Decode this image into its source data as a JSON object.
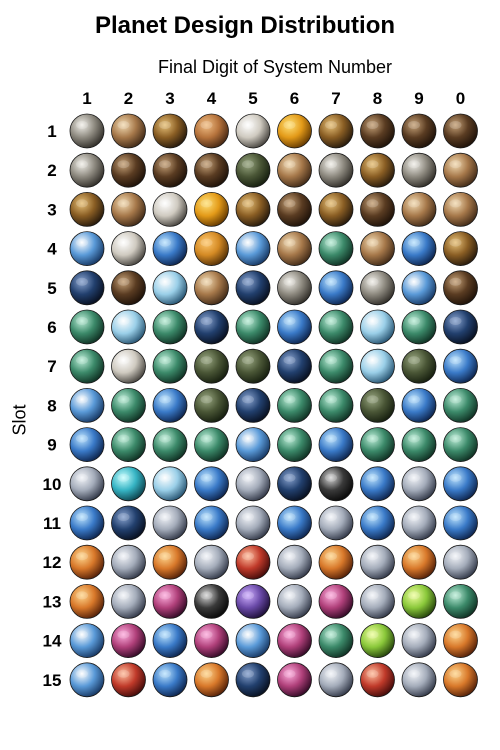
{
  "chart_data": {
    "type": "table",
    "title": "Planet Design Distribution",
    "xlabel": "Final Digit of System Number",
    "ylabel": "Slot",
    "columns": [
      "1",
      "2",
      "3",
      "4",
      "5",
      "6",
      "7",
      "8",
      "9",
      "0"
    ],
    "rows": [
      "1",
      "2",
      "3",
      "4",
      "5",
      "6",
      "7",
      "8",
      "9",
      "10",
      "11",
      "12",
      "13",
      "14",
      "15"
    ],
    "cells": [
      [
        "rock-grey",
        "rock-tan",
        "desert-brown",
        "rock-orange",
        "rock-white",
        "desert-gold",
        "desert-brown",
        "rock-dark-brown",
        "rock-dark-brown",
        "rock-dark-brown"
      ],
      [
        "rock-grey",
        "rock-dark-brown",
        "rock-dark-brown",
        "rock-dark-brown",
        "jungle-dark",
        "rock-tan",
        "rock-grey",
        "desert-brown",
        "rock-grey",
        "rock-tan"
      ],
      [
        "desert-brown",
        "rock-tan",
        "rock-white",
        "desert-gold",
        "desert-brown",
        "rock-dark-brown",
        "desert-brown",
        "rock-dark-brown",
        "rock-tan",
        "rock-tan"
      ],
      [
        "earth-blue",
        "rock-white",
        "ocean-blue",
        "desert-orange",
        "earth-blue",
        "rock-tan",
        "jungle-green",
        "rock-tan",
        "ocean-blue",
        "desert-brown"
      ],
      [
        "ocean-dark",
        "rock-dark-brown",
        "ice-blue",
        "rock-tan",
        "ocean-dark",
        "rock-grey",
        "ocean-blue",
        "rock-grey",
        "earth-blue",
        "rock-dark-brown"
      ],
      [
        "jungle-green",
        "ice-blue",
        "jungle-green",
        "ocean-dark",
        "jungle-green",
        "ocean-blue",
        "jungle-green",
        "ice-blue",
        "jungle-green",
        "ocean-dark"
      ],
      [
        "jungle-green",
        "rock-white",
        "jungle-green",
        "jungle-dark",
        "jungle-dark",
        "ocean-dark",
        "jungle-green",
        "ice-blue",
        "jungle-dark",
        "ocean-blue"
      ],
      [
        "earth-blue",
        "jungle-green",
        "ocean-blue",
        "jungle-dark",
        "ocean-dark",
        "jungle-green",
        "jungle-green",
        "jungle-dark",
        "ocean-blue",
        "jungle-green"
      ],
      [
        "ocean-blue",
        "jungle-green",
        "jungle-green",
        "jungle-green",
        "earth-blue",
        "jungle-green",
        "ocean-blue",
        "jungle-green",
        "jungle-green",
        "jungle-green"
      ],
      [
        "ice-white",
        "ice-cyan",
        "ice-blue",
        "ocean-blue",
        "ice-white",
        "ocean-dark",
        "gas-black",
        "ocean-blue",
        "ice-white",
        "ocean-blue"
      ],
      [
        "ocean-blue",
        "ocean-dark",
        "ice-white",
        "ocean-blue",
        "ice-white",
        "ocean-blue",
        "ice-white",
        "ocean-blue",
        "ice-white",
        "ocean-blue"
      ],
      [
        "gas-orange",
        "ice-white",
        "gas-orange",
        "ice-white",
        "gas-red",
        "ice-white",
        "gas-orange",
        "ice-white",
        "gas-orange",
        "ice-white"
      ],
      [
        "gas-orange",
        "ice-white",
        "gas-pink",
        "gas-black",
        "gas-purple",
        "ice-white",
        "gas-pink",
        "ice-white",
        "gas-green",
        "jungle-green"
      ],
      [
        "earth-blue",
        "gas-pink",
        "ocean-blue",
        "gas-pink",
        "earth-blue",
        "gas-pink",
        "jungle-green",
        "gas-green",
        "ice-white",
        "gas-orange"
      ],
      [
        "earth-blue",
        "gas-red",
        "ocean-blue",
        "gas-orange",
        "ocean-dark",
        "gas-pink",
        "ice-white",
        "gas-red",
        "ice-white",
        "gas-orange"
      ]
    ],
    "palette": {
      "rock-grey": [
        "#f2f0ea",
        "#8e8a80",
        "#2a2722"
      ],
      "rock-tan": [
        "#f3dcb4",
        "#a6784a",
        "#3a2514"
      ],
      "rock-white": [
        "#ffffff",
        "#cfcac0",
        "#3d3a35"
      ],
      "rock-orange": [
        "#f2c087",
        "#b6733c",
        "#3e2210"
      ],
      "rock-dark-brown": [
        "#c8a47a",
        "#5a3c22",
        "#1a0f07"
      ],
      "desert-brown": [
        "#e8c27a",
        "#8a5e24",
        "#20150a"
      ],
      "desert-gold": [
        "#ffe27a",
        "#e39a18",
        "#5a3200"
      ],
      "desert-orange": [
        "#ffc970",
        "#d48a24",
        "#4a2a06"
      ],
      "jungle-dark": [
        "#9aa882",
        "#4a5636",
        "#121a0c"
      ],
      "jungle-green": [
        "#bff0da",
        "#3c8a6a",
        "#0c2a1e"
      ],
      "earth-blue": [
        "#ffffff",
        "#5a9ad8",
        "#12305a"
      ],
      "ocean-blue": [
        "#bfe6ff",
        "#3a7ac8",
        "#0a1e44"
      ],
      "ocean-dark": [
        "#8aa4d0",
        "#22406e",
        "#060c1a"
      ],
      "ice-blue": [
        "#ffffff",
        "#9acfe8",
        "#1e4a68"
      ],
      "ice-white": [
        "#f4f6fa",
        "#a4acba",
        "#2a3040"
      ],
      "ice-cyan": [
        "#caffff",
        "#36b4c4",
        "#0a3a44"
      ],
      "gas-black": [
        "#d8d8d8",
        "#3a3a3a",
        "#050505"
      ],
      "gas-orange": [
        "#ffd890",
        "#d8782a",
        "#4a1a06"
      ],
      "gas-red": [
        "#ffc0a0",
        "#c03a2a",
        "#3a0808"
      ],
      "gas-pink": [
        "#ffb0e0",
        "#b0407a",
        "#2a0620"
      ],
      "gas-purple": [
        "#d0b0ff",
        "#6a4aa8",
        "#180a30"
      ],
      "gas-green": [
        "#f0ffa0",
        "#8ac83a",
        "#1e3a08"
      ]
    }
  }
}
